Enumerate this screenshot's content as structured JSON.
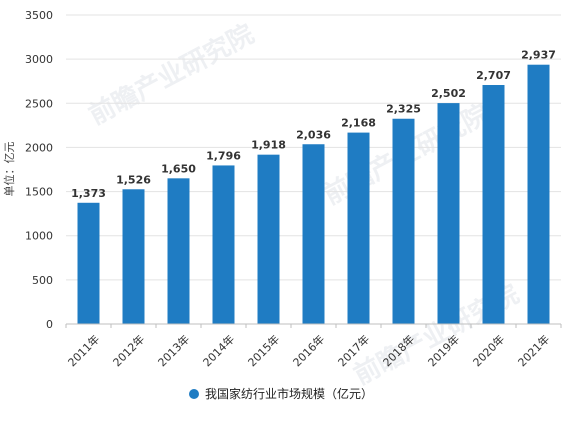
{
  "chart_data": {
    "type": "bar",
    "categories": [
      "2011年",
      "2012年",
      "2013年",
      "2014年",
      "2015年",
      "2016年",
      "2017年",
      "2018年",
      "2019年",
      "2020年",
      "2021年"
    ],
    "series": [
      {
        "name": "我国家纺行业市场规模（亿元）",
        "values": [
          1373,
          1526,
          1650,
          1796,
          1918,
          2036,
          2168,
          2325,
          2502,
          2707,
          2937
        ]
      }
    ],
    "data_labels": [
      "1,373",
      "1,526",
      "1,650",
      "1,796",
      "1,918",
      "2,036",
      "2,168",
      "2,325",
      "2,502",
      "2,707",
      "2,937"
    ],
    "ylabel": "单位：亿元",
    "ylim": [
      0,
      3500
    ],
    "yticks": [
      0,
      500,
      1000,
      1500,
      2000,
      2500,
      3000,
      3500
    ],
    "grid": true,
    "legend_position": "bottom",
    "bar_color": "#1f7cc3"
  },
  "watermark": "前瞻产业研究院"
}
